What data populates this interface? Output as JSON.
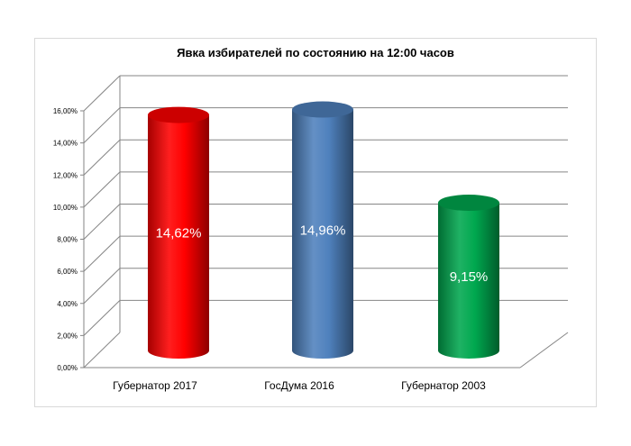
{
  "chart_data": {
    "type": "bar",
    "title": "Явка избирателей по состоянию на 12:00 часов",
    "categories": [
      "Губернатор 2017",
      "ГосДума 2016",
      "Губернатор 2003"
    ],
    "values": [
      14.62,
      14.96,
      9.15
    ],
    "value_labels": [
      "14,62%",
      "14,96%",
      "9,15%"
    ],
    "colors": [
      "#ff0000",
      "#4f81bd",
      "#00a84f"
    ],
    "ylim": [
      0,
      16
    ],
    "yticks": [
      "0,00%",
      "2,00%",
      "4,00%",
      "6,00%",
      "8,00%",
      "10,00%",
      "12,00%",
      "14,00%",
      "16,00%"
    ],
    "grid": true,
    "legend": "none",
    "style": "3d-cylinder"
  }
}
